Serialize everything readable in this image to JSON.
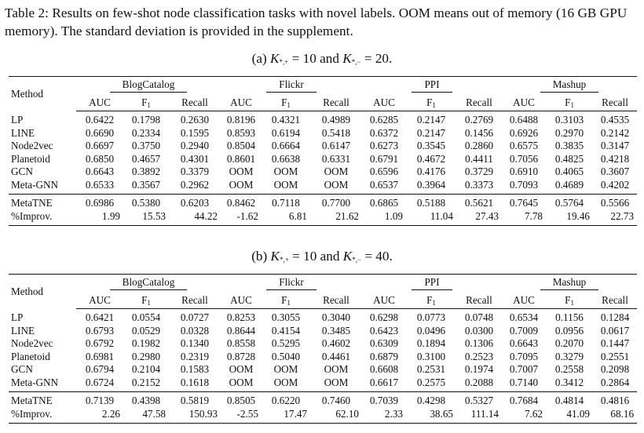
{
  "caption": "Table 2: Results on few-shot node classification tasks with novel labels. OOM means out of memory (16 GB GPU memory). The standard deviation is provided in the supplement.",
  "datasets": [
    "BlogCatalog",
    "Flickr",
    "PPI",
    "Mashup"
  ],
  "method_header": "Method",
  "metrics": {
    "auc": "AUC",
    "f_main": "F",
    "f_sub": "1",
    "recall": "Recall"
  },
  "panels": [
    {
      "label": "(a) K*,+ = 10 and K*,− = 20.",
      "label_prefix": "(a) ",
      "label_var1": "K",
      "label_sub1": "*,+",
      "label_mid": " = 10 and ",
      "label_var2": "K",
      "label_sub2": "*,−",
      "label_end": " = 20.",
      "rows": [
        {
          "method": "LP",
          "values": [
            "0.6422",
            "0.1798",
            "0.2630",
            "0.8196",
            "0.4321",
            "0.4989",
            "0.6285",
            "0.2147",
            "0.2769",
            "0.6488",
            "0.3103",
            "0.4535"
          ]
        },
        {
          "method": "LINE",
          "values": [
            "0.6690",
            "0.2334",
            "0.1595",
            "0.8593",
            "0.6194",
            "0.5418",
            "0.6372",
            "0.2147",
            "0.1456",
            "0.6926",
            "0.2970",
            "0.2142"
          ]
        },
        {
          "method": "Node2vec",
          "values": [
            "0.6697",
            "0.3750",
            "0.2940",
            "0.8504",
            "0.6664",
            "0.6147",
            "0.6273",
            "0.3545",
            "0.2860",
            "0.6575",
            "0.3835",
            "0.3147"
          ]
        },
        {
          "method": "Planetoid",
          "values": [
            "0.6850",
            "0.4657",
            "0.4301",
            "0.8601",
            "0.6638",
            "0.6331",
            "0.6791",
            "0.4672",
            "0.4411",
            "0.7056",
            "0.4825",
            "0.4218"
          ],
          "bold": [
            3
          ]
        },
        {
          "method": "GCN",
          "values": [
            "0.6643",
            "0.3892",
            "0.3379",
            "OOM",
            "OOM",
            "OOM",
            "0.6596",
            "0.4176",
            "0.3729",
            "0.6910",
            "0.4065",
            "0.3607"
          ]
        },
        {
          "method": "Meta-GNN",
          "values": [
            "0.6533",
            "0.3567",
            "0.2962",
            "OOM",
            "OOM",
            "OOM",
            "0.6537",
            "0.3964",
            "0.3373",
            "0.7093",
            "0.4689",
            "0.4202"
          ]
        }
      ],
      "summary": [
        {
          "method": "MetaTNE",
          "values": [
            "0.6986",
            "0.5380",
            "0.6203",
            "0.8462",
            "0.7118",
            "0.7700",
            "0.6865",
            "0.5188",
            "0.5621",
            "0.7645",
            "0.5764",
            "0.5566"
          ],
          "bold": [
            0,
            1,
            2,
            4,
            5,
            6,
            7,
            8,
            9,
            10,
            11
          ]
        },
        {
          "method": "%Improv.",
          "values": [
            "1.99",
            "15.53",
            "44.22",
            "-1.62",
            "6.81",
            "21.62",
            "1.09",
            "11.04",
            "27.43",
            "7.78",
            "19.46",
            "22.73"
          ],
          "right": true
        }
      ]
    },
    {
      "label": "(b) K*,+ = 10 and K*,− = 40.",
      "label_prefix": "(b) ",
      "label_var1": "K",
      "label_sub1": "*,+",
      "label_mid": " = 10 and ",
      "label_var2": "K",
      "label_sub2": "*,−",
      "label_end": " = 40.",
      "rows": [
        {
          "method": "LP",
          "values": [
            "0.6421",
            "0.0554",
            "0.0727",
            "0.8253",
            "0.3055",
            "0.3040",
            "0.6298",
            "0.0773",
            "0.0748",
            "0.6534",
            "0.1156",
            "0.1284"
          ]
        },
        {
          "method": "LINE",
          "values": [
            "0.6793",
            "0.0529",
            "0.0328",
            "0.8644",
            "0.4154",
            "0.3485",
            "0.6423",
            "0.0496",
            "0.0300",
            "0.7009",
            "0.0956",
            "0.0617"
          ]
        },
        {
          "method": "Node2vec",
          "values": [
            "0.6792",
            "0.1982",
            "0.1340",
            "0.8558",
            "0.5295",
            "0.4602",
            "0.6309",
            "0.1894",
            "0.1306",
            "0.6643",
            "0.2070",
            "0.1447"
          ]
        },
        {
          "method": "Planetoid",
          "values": [
            "0.6981",
            "0.2980",
            "0.2319",
            "0.8728",
            "0.5040",
            "0.4461",
            "0.6879",
            "0.3100",
            "0.2523",
            "0.7095",
            "0.3279",
            "0.2551"
          ],
          "bold": [
            3
          ]
        },
        {
          "method": "GCN",
          "values": [
            "0.6794",
            "0.2104",
            "0.1583",
            "OOM",
            "OOM",
            "OOM",
            "0.6608",
            "0.2531",
            "0.1974",
            "0.7007",
            "0.2558",
            "0.2098"
          ]
        },
        {
          "method": "Meta-GNN",
          "values": [
            "0.6724",
            "0.2152",
            "0.1618",
            "OOM",
            "OOM",
            "OOM",
            "0.6617",
            "0.2575",
            "0.2088",
            "0.7140",
            "0.3412",
            "0.2864"
          ]
        }
      ],
      "summary": [
        {
          "method": "MetaTNE",
          "values": [
            "0.7139",
            "0.4398",
            "0.5819",
            "0.8505",
            "0.6220",
            "0.7460",
            "0.7039",
            "0.4298",
            "0.5327",
            "0.7684",
            "0.4814",
            "0.4816"
          ],
          "bold": [
            0,
            1,
            2,
            4,
            5,
            6,
            7,
            8,
            9,
            10,
            11
          ]
        },
        {
          "method": "%Improv.",
          "values": [
            "2.26",
            "47.58",
            "150.93",
            "-2.55",
            "17.47",
            "62.10",
            "2.33",
            "38.65",
            "111.14",
            "7.62",
            "41.09",
            "68.16"
          ],
          "right": true
        }
      ]
    }
  ]
}
